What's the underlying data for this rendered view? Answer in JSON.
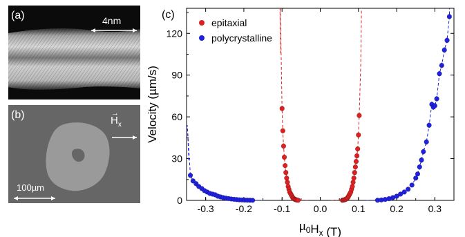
{
  "panels": {
    "a": {
      "label": "(a)",
      "scalebar_label": "4nm"
    },
    "b": {
      "label": "(b)",
      "scalebar_label": "100µm",
      "field_label": "H",
      "field_subscript": "x"
    }
  },
  "chart_data": {
    "type": "scatter",
    "panel_label": "(c)",
    "xlabel": {
      "main": "µ",
      "sub1": "0",
      "mid": "H",
      "sub2": "x",
      "unit": " (T)"
    },
    "ylabel": "Velocity (µm/s)",
    "xlim": [
      -0.35,
      0.35
    ],
    "ylim": [
      0,
      138
    ],
    "xticks": [
      -0.3,
      -0.2,
      -0.1,
      0.0,
      0.1,
      0.2,
      0.3
    ],
    "xtick_labels": [
      "-0.3",
      "-0.2",
      "-0.1",
      "0.0",
      "0.1",
      "0.2",
      "0.3"
    ],
    "yticks": [
      0,
      30,
      60,
      90,
      120
    ],
    "ytick_labels": [
      "0",
      "30",
      "60",
      "90",
      "120"
    ],
    "grid": false,
    "legend_position": "top-left",
    "series": [
      {
        "name": "epitaxial",
        "color": "#e02020",
        "fit": "dashed",
        "points": [
          [
            -0.1,
            66
          ],
          [
            -0.098,
            50
          ],
          [
            -0.096,
            39
          ],
          [
            -0.094,
            31
          ],
          [
            -0.092,
            25
          ],
          [
            -0.09,
            20
          ],
          [
            -0.088,
            16
          ],
          [
            -0.086,
            13
          ],
          [
            -0.084,
            10
          ],
          [
            -0.082,
            8
          ],
          [
            -0.08,
            6
          ],
          [
            -0.078,
            5
          ],
          [
            -0.076,
            4
          ],
          [
            -0.074,
            3
          ],
          [
            -0.072,
            2
          ],
          [
            -0.07,
            1.5
          ],
          [
            -0.068,
            1
          ],
          [
            -0.066,
            0.7
          ],
          [
            -0.064,
            0.5
          ],
          [
            -0.062,
            0.3
          ],
          [
            -0.06,
            0.2
          ],
          [
            -0.058,
            0.1
          ],
          [
            0.058,
            0.1
          ],
          [
            0.06,
            0.2
          ],
          [
            0.062,
            0.3
          ],
          [
            0.064,
            0.5
          ],
          [
            0.066,
            0.7
          ],
          [
            0.068,
            1
          ],
          [
            0.07,
            1.5
          ],
          [
            0.072,
            2
          ],
          [
            0.074,
            3
          ],
          [
            0.076,
            4
          ],
          [
            0.078,
            5
          ],
          [
            0.08,
            6
          ],
          [
            0.082,
            8
          ],
          [
            0.084,
            10
          ],
          [
            0.086,
            13
          ],
          [
            0.088,
            16
          ],
          [
            0.09,
            20
          ],
          [
            0.092,
            24
          ],
          [
            0.094,
            28
          ],
          [
            0.096,
            32
          ],
          [
            0.098,
            37
          ],
          [
            0.1,
            47
          ],
          [
            0.102,
            61
          ]
        ]
      },
      {
        "name": "polycrystalline",
        "color": "#2020e0",
        "fit": "dashed",
        "points": [
          [
            -0.34,
            18
          ],
          [
            -0.333,
            14
          ],
          [
            -0.325,
            12
          ],
          [
            -0.318,
            10
          ],
          [
            -0.31,
            8.5
          ],
          [
            -0.303,
            7
          ],
          [
            -0.296,
            6
          ],
          [
            -0.289,
            5
          ],
          [
            -0.282,
            4.5
          ],
          [
            -0.275,
            4
          ],
          [
            -0.268,
            3
          ],
          [
            -0.261,
            2.5
          ],
          [
            -0.254,
            2
          ],
          [
            -0.247,
            1.6
          ],
          [
            -0.24,
            1.3
          ],
          [
            -0.233,
            1
          ],
          [
            -0.226,
            0.8
          ],
          [
            -0.219,
            0.6
          ],
          [
            -0.212,
            0.4
          ],
          [
            -0.205,
            0.3
          ],
          [
            -0.198,
            0.2
          ],
          [
            -0.191,
            0.15
          ],
          [
            -0.184,
            0.1
          ],
          [
            -0.177,
            0.05
          ],
          [
            0.15,
            0.1
          ],
          [
            0.16,
            0.3
          ],
          [
            0.17,
            0.7
          ],
          [
            0.18,
            1.2
          ],
          [
            0.19,
            2
          ],
          [
            0.2,
            3
          ],
          [
            0.21,
            4.5
          ],
          [
            0.22,
            6
          ],
          [
            0.23,
            8
          ],
          [
            0.24,
            11
          ],
          [
            0.25,
            16
          ],
          [
            0.255,
            19
          ],
          [
            0.26,
            24
          ],
          [
            0.265,
            29
          ],
          [
            0.27,
            35
          ],
          [
            0.278,
            42
          ],
          [
            0.285,
            54
          ],
          [
            0.292,
            69
          ],
          [
            0.296,
            67
          ],
          [
            0.3,
            68
          ],
          [
            0.305,
            73
          ],
          [
            0.312,
            91
          ],
          [
            0.318,
            97
          ],
          [
            0.325,
            108
          ],
          [
            0.332,
            115
          ],
          [
            0.338,
            132
          ]
        ]
      }
    ]
  }
}
